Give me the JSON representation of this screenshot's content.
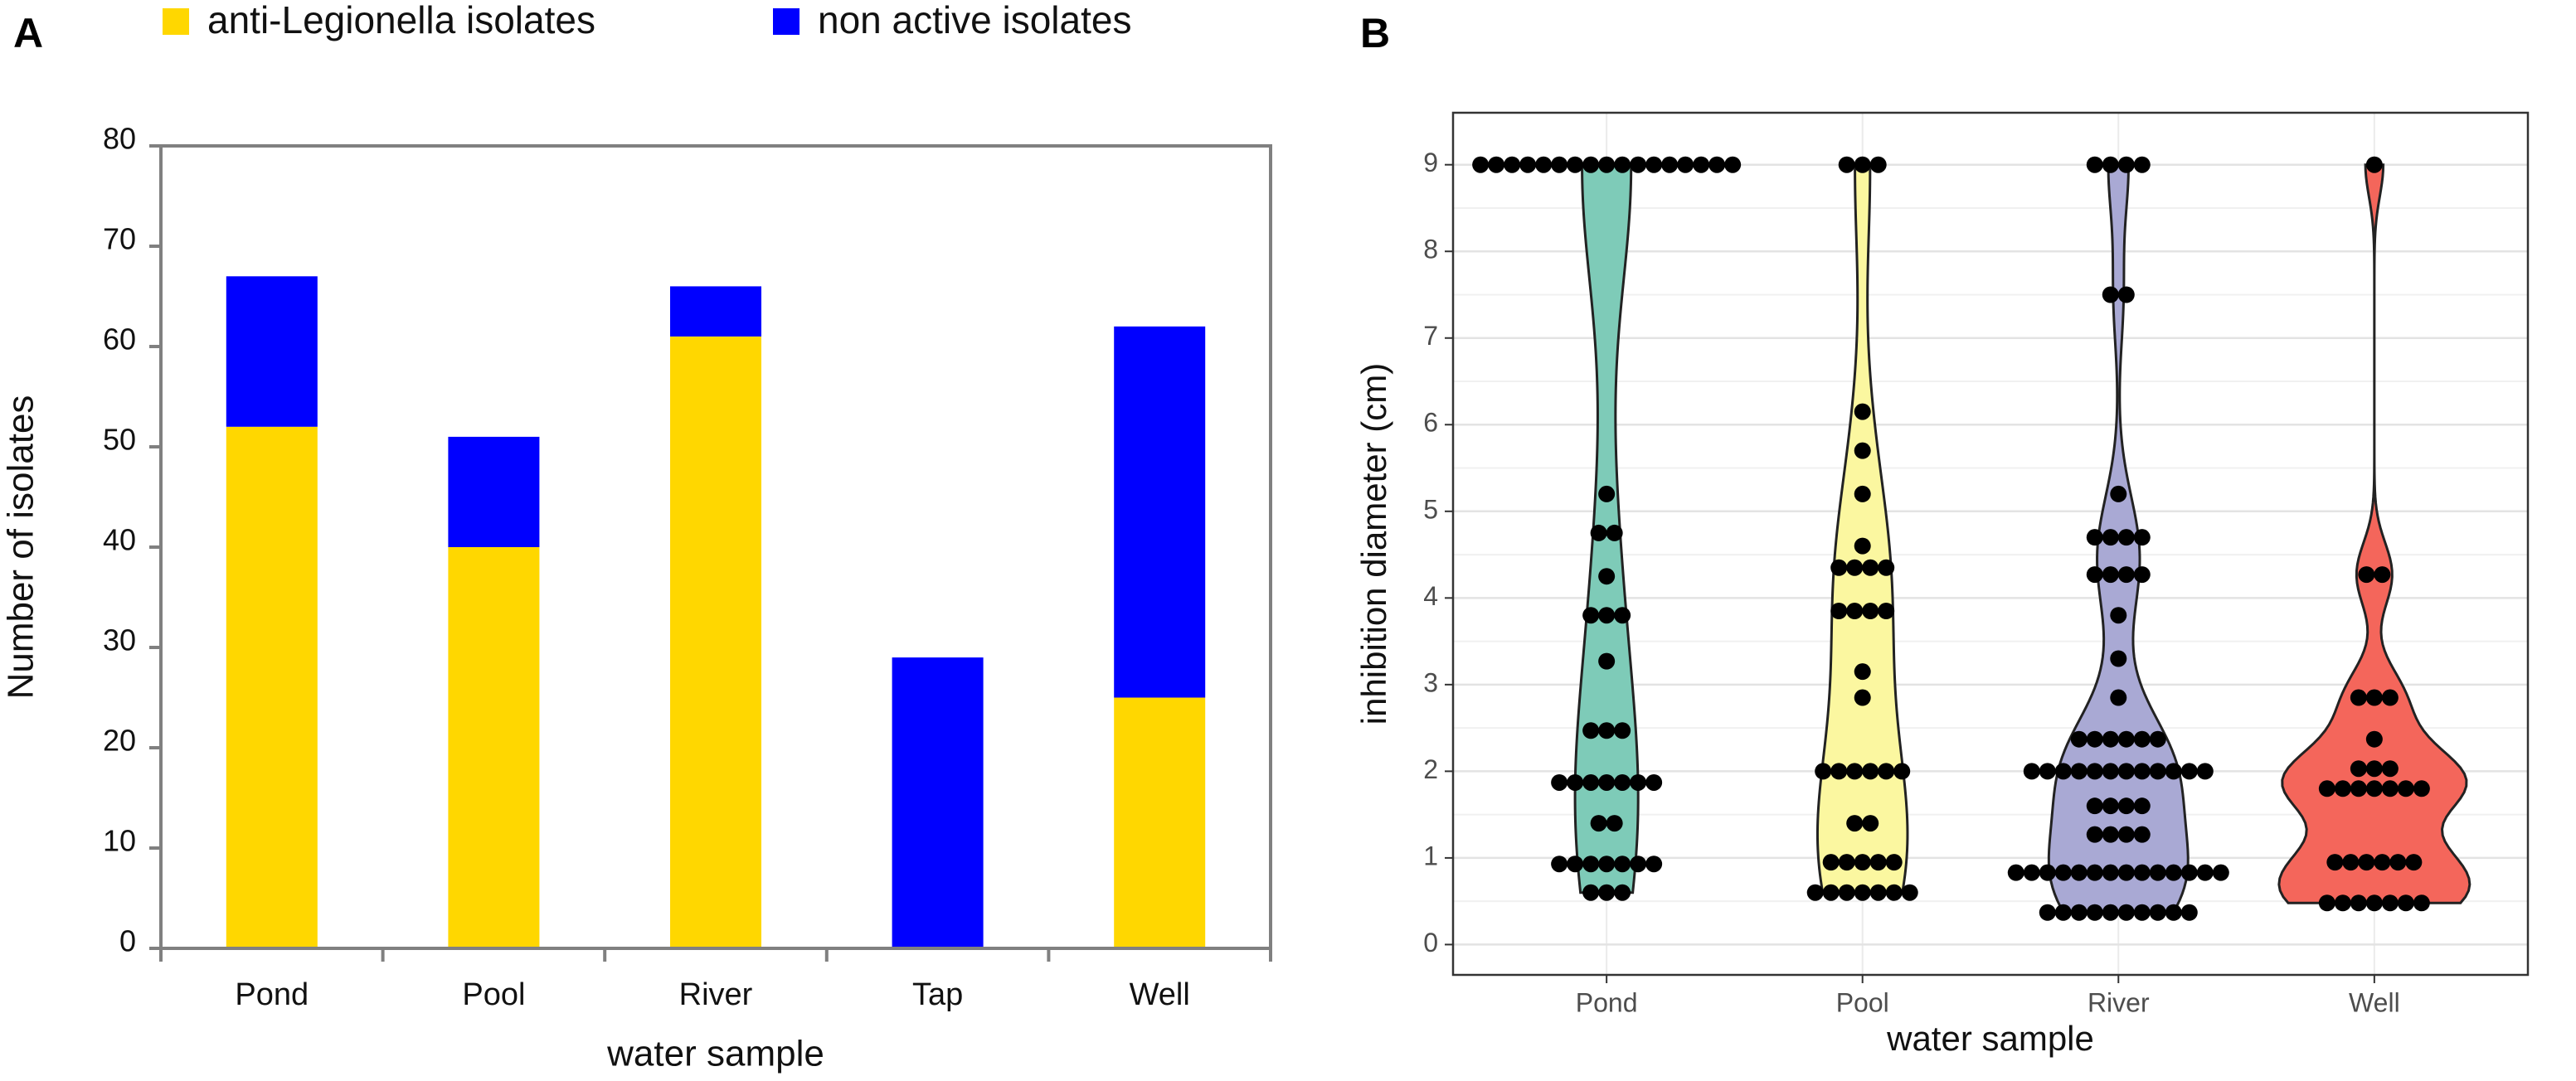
{
  "chart_data": [
    {
      "type": "stacked_bar",
      "panel_label": "A",
      "categories": [
        "Pond",
        "Pool",
        "River",
        "Tap",
        "Well"
      ],
      "series": [
        {
          "name": "anti-Legionella isolates",
          "color": "#ffd700",
          "values": [
            52,
            40,
            61,
            0,
            25
          ]
        },
        {
          "name": "non active isolates",
          "color": "#0000ff",
          "values": [
            15,
            11,
            5,
            29,
            37
          ]
        }
      ],
      "xlabel": "water sample",
      "ylabel": "Number of isolates",
      "ylim": [
        0,
        80
      ],
      "yticks": [
        0,
        10,
        20,
        30,
        40,
        50,
        60,
        70,
        80
      ]
    },
    {
      "type": "violin",
      "panel_label": "B",
      "categories": [
        "Pond",
        "Pool",
        "River",
        "Well"
      ],
      "colors": [
        "#7ecbb8",
        "#fbf7a0",
        "#a9a9d4",
        "#f4665b"
      ],
      "values": [
        [
          9,
          9,
          9,
          9,
          9,
          9,
          9,
          9,
          9,
          9,
          9,
          9,
          9,
          9,
          9,
          9,
          9,
          5.2,
          4.75,
          4.75,
          4.25,
          3.8,
          3.8,
          3.8,
          3.27,
          2.47,
          2.47,
          2.47,
          1.87,
          1.87,
          1.87,
          1.87,
          1.87,
          1.87,
          1.87,
          1.4,
          1.4,
          0.93,
          0.93,
          0.93,
          0.93,
          0.93,
          0.93,
          0.93,
          0.6,
          0.6,
          0.6
        ],
        [
          9,
          9,
          9,
          6.15,
          5.7,
          5.2,
          4.6,
          4.35,
          4.35,
          4.35,
          4.35,
          3.85,
          3.85,
          3.85,
          3.85,
          3.15,
          2.85,
          2,
          2,
          2,
          2,
          2,
          2,
          1.4,
          1.4,
          0.95,
          0.95,
          0.95,
          0.95,
          0.95,
          0.6,
          0.6,
          0.6,
          0.6,
          0.6,
          0.6,
          0.6
        ],
        [
          9,
          9,
          9,
          9,
          7.5,
          7.5,
          5.2,
          4.7,
          4.7,
          4.7,
          4.7,
          4.27,
          4.27,
          4.27,
          4.27,
          3.8,
          3.3,
          2.85,
          2.37,
          2.37,
          2.37,
          2.37,
          2.37,
          2.37,
          2,
          2,
          2,
          2,
          2,
          2,
          2,
          2,
          2,
          2,
          2,
          2,
          1.6,
          1.6,
          1.6,
          1.6,
          1.27,
          1.27,
          1.27,
          1.27,
          0.83,
          0.83,
          0.83,
          0.83,
          0.83,
          0.83,
          0.83,
          0.83,
          0.83,
          0.83,
          0.83,
          0.83,
          0.83,
          0.83,
          0.37,
          0.37,
          0.37,
          0.37,
          0.37,
          0.37,
          0.37,
          0.37,
          0.37,
          0.37
        ],
        [
          9,
          4.27,
          4.27,
          2.85,
          2.85,
          2.85,
          2.37,
          2.03,
          2.03,
          2.03,
          1.8,
          1.8,
          1.8,
          1.8,
          1.8,
          1.8,
          1.8,
          0.95,
          0.95,
          0.95,
          0.95,
          0.95,
          0.95,
          0.48,
          0.48,
          0.48,
          0.48,
          0.48,
          0.48,
          0.48
        ]
      ],
      "xlabel": "water sample",
      "ylabel": "inhibition diameter (cm)",
      "ylim": [
        -0.35,
        9.6
      ],
      "yticks": [
        0,
        1,
        2,
        3,
        4,
        5,
        6,
        7,
        8,
        9
      ],
      "grid": true
    }
  ]
}
